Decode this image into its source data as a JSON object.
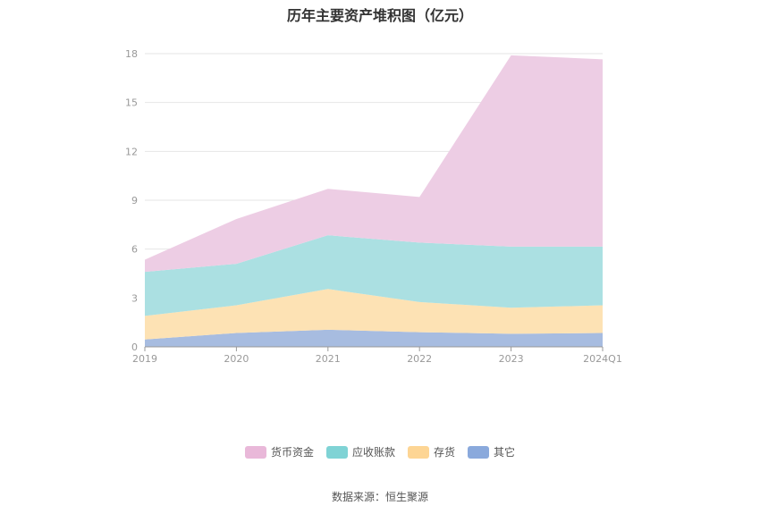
{
  "chart_data": {
    "type": "area",
    "stacked": true,
    "title": "历年主要资产堆积图（亿元）",
    "categories": [
      "2019",
      "2020",
      "2021",
      "2022",
      "2023",
      "2024Q1"
    ],
    "ylim": [
      0,
      18
    ],
    "yticks": [
      0,
      3,
      6,
      9,
      12,
      15,
      18
    ],
    "grid": true,
    "legend_position": "bottom",
    "series": [
      {
        "name": "其它",
        "color": "#a7bce0",
        "values": [
          0.45,
          0.85,
          1.05,
          0.9,
          0.8,
          0.85
        ]
      },
      {
        "name": "存货",
        "color": "#fde2b4",
        "values": [
          1.45,
          1.7,
          2.5,
          1.85,
          1.6,
          1.7
        ]
      },
      {
        "name": "应收账款",
        "color": "#abe0e2",
        "values": [
          2.7,
          2.55,
          3.3,
          3.65,
          3.75,
          3.6
        ]
      },
      {
        "name": "货币资金",
        "color": "#edcde4",
        "values": [
          0.75,
          2.75,
          2.85,
          2.8,
          11.75,
          11.5
        ]
      }
    ]
  },
  "legend": [
    {
      "name": "货币资金",
      "color": "#e9b8d9"
    },
    {
      "name": "应收账款",
      "color": "#7fd3d5"
    },
    {
      "name": "存货",
      "color": "#fdd594"
    },
    {
      "name": "其它",
      "color": "#8aa9dc"
    }
  ],
  "source": "数据来源：恒生聚源"
}
